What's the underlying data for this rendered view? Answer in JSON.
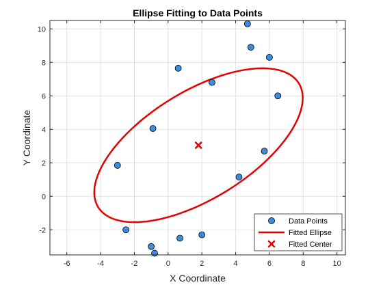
{
  "chart_data": {
    "type": "scatter",
    "title": "Ellipse Fitting to Data Points",
    "xlabel": "X Coordinate",
    "ylabel": "Y Coordinate",
    "xlim": [
      -7,
      10.5
    ],
    "ylim": [
      -3.5,
      10.5
    ],
    "xticks": [
      -6,
      -4,
      -2,
      0,
      2,
      4,
      6,
      8,
      10
    ],
    "yticks": [
      -2,
      0,
      2,
      4,
      6,
      8,
      10
    ],
    "grid": true,
    "legend_position": "bottom-right",
    "colors": {
      "points": "#3b8de0",
      "ellipse": "#e60000",
      "center": "#e60000",
      "grid": "#dcdcdc",
      "axes": "#262626"
    },
    "series": [
      {
        "name": "Data Points",
        "kind": "scatter",
        "points": [
          {
            "x": 4.7,
            "y": 10.3
          },
          {
            "x": 4.9,
            "y": 8.9
          },
          {
            "x": 6.0,
            "y": 8.3
          },
          {
            "x": 0.6,
            "y": 7.65
          },
          {
            "x": 2.6,
            "y": 6.8
          },
          {
            "x": 6.5,
            "y": 6.0
          },
          {
            "x": -0.9,
            "y": 4.05
          },
          {
            "x": 5.7,
            "y": 2.7
          },
          {
            "x": -3.0,
            "y": 1.85
          },
          {
            "x": 4.2,
            "y": 1.15
          },
          {
            "x": -2.5,
            "y": -2.0
          },
          {
            "x": 2.0,
            "y": -2.3
          },
          {
            "x": 0.7,
            "y": -2.5
          },
          {
            "x": -1.0,
            "y": -3.0
          },
          {
            "x": -0.8,
            "y": -3.4
          }
        ]
      },
      {
        "name": "Fitted Ellipse",
        "kind": "ellipse",
        "center": {
          "x": 1.8,
          "y": 3.05
        },
        "semi_major": 7.0,
        "semi_minor": 3.2,
        "angle_deg": 32
      },
      {
        "name": "Fitted Center",
        "kind": "marker",
        "points": [
          {
            "x": 1.8,
            "y": 3.05
          }
        ]
      }
    ]
  }
}
